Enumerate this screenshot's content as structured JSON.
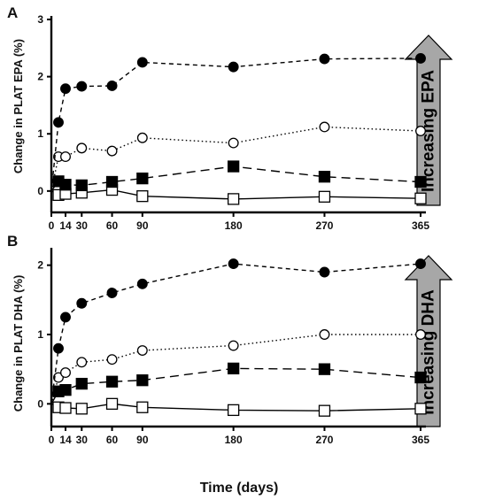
{
  "x_axis_title": "Time (days)",
  "colors": {
    "ink": "#000000",
    "arrow_fill": "#a7a7a7",
    "open_fill": "#ffffff"
  },
  "chart_data": [
    {
      "type": "line",
      "panel_label": "A",
      "ylabel": "Change in PLAT EPA (%)",
      "arrow_label": "Increasing EPA",
      "x_ticks": [
        0,
        14,
        30,
        60,
        90,
        180,
        270,
        365
      ],
      "y_ticks": [
        0,
        1,
        2,
        3
      ],
      "xlim": [
        0,
        365
      ],
      "ylim": [
        -0.25,
        3
      ],
      "series": [
        {
          "marker": "filled-circle",
          "line": "short-dash",
          "x": [
            0,
            7,
            14,
            30,
            60,
            90,
            180,
            270,
            365
          ],
          "values": [
            0,
            1.2,
            1.79,
            1.83,
            1.84,
            2.25,
            2.17,
            2.31,
            2.32
          ]
        },
        {
          "marker": "open-circle",
          "line": "dotted",
          "x": [
            0,
            7,
            14,
            30,
            60,
            90,
            180,
            270,
            365
          ],
          "values": [
            0,
            0.6,
            0.6,
            0.75,
            0.7,
            0.93,
            0.84,
            1.12,
            1.05
          ]
        },
        {
          "marker": "filled-square",
          "line": "long-dash",
          "x": [
            0,
            7,
            14,
            30,
            60,
            90,
            180,
            270,
            365
          ],
          "values": [
            0,
            0.17,
            0.11,
            0.1,
            0.16,
            0.22,
            0.43,
            0.25,
            0.16
          ]
        },
        {
          "marker": "open-square",
          "line": "solid",
          "x": [
            0,
            7,
            14,
            30,
            60,
            90,
            180,
            270,
            365
          ],
          "values": [
            0,
            -0.07,
            -0.05,
            -0.03,
            0.02,
            -0.09,
            -0.14,
            -0.1,
            -0.13
          ]
        }
      ]
    },
    {
      "type": "line",
      "panel_label": "B",
      "ylabel": "Change in PLAT DHA (%)",
      "arrow_label": "Increasing DHA",
      "x_ticks": [
        0,
        14,
        30,
        60,
        90,
        180,
        270,
        365
      ],
      "y_ticks": [
        0,
        1,
        2
      ],
      "xlim": [
        0,
        365
      ],
      "ylim": [
        -0.2,
        2.2
      ],
      "series": [
        {
          "marker": "filled-circle",
          "line": "short-dash",
          "x": [
            0,
            7,
            14,
            30,
            60,
            90,
            180,
            270,
            365
          ],
          "values": [
            0,
            0.8,
            1.25,
            1.45,
            1.6,
            1.73,
            2.02,
            1.9,
            2.02
          ]
        },
        {
          "marker": "open-circle",
          "line": "dotted",
          "x": [
            0,
            7,
            14,
            30,
            60,
            90,
            180,
            270,
            365
          ],
          "values": [
            0,
            0.38,
            0.45,
            0.6,
            0.64,
            0.77,
            0.84,
            1.0,
            1.0
          ]
        },
        {
          "marker": "filled-square",
          "line": "long-dash",
          "x": [
            0,
            7,
            14,
            30,
            60,
            90,
            180,
            270,
            365
          ],
          "values": [
            0,
            0.18,
            0.2,
            0.29,
            0.32,
            0.34,
            0.51,
            0.5,
            0.38
          ]
        },
        {
          "marker": "open-square",
          "line": "solid",
          "x": [
            0,
            7,
            14,
            30,
            60,
            90,
            180,
            270,
            365
          ],
          "values": [
            0,
            -0.05,
            -0.06,
            -0.07,
            0.0,
            -0.05,
            -0.09,
            -0.1,
            -0.07
          ]
        }
      ]
    }
  ]
}
